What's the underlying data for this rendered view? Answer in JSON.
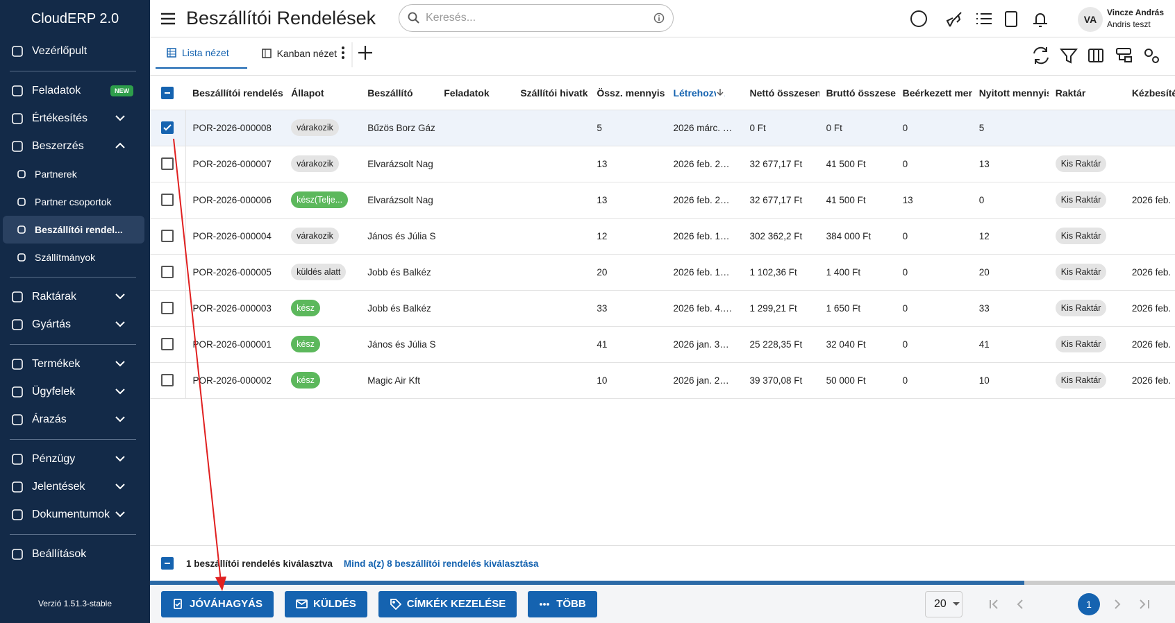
{
  "sidebar": {
    "brand": "CloudERP 2.0",
    "groups": [
      [
        {
          "label": "Vezérlőpult"
        }
      ],
      [
        {
          "label": "Feladatok",
          "badge": "NEW"
        },
        {
          "label": "Értékesítés",
          "expandable": true
        },
        {
          "label": "Beszerzés",
          "expandable": true,
          "expanded": true,
          "children": [
            {
              "label": "Partnerek"
            },
            {
              "label": "Partner csoportok"
            },
            {
              "label": "Beszállítói rendel...",
              "active": true
            },
            {
              "label": "Szállítmányok"
            }
          ]
        }
      ],
      [
        {
          "label": "Raktárak",
          "expandable": true
        },
        {
          "label": "Gyártás",
          "expandable": true
        }
      ],
      [
        {
          "label": "Termékek",
          "expandable": true
        },
        {
          "label": "Ügyfelek",
          "expandable": true
        },
        {
          "label": "Árazás",
          "expandable": true
        }
      ],
      [
        {
          "label": "Pénzügy",
          "expandable": true
        },
        {
          "label": "Jelentések",
          "expandable": true
        },
        {
          "label": "Dokumentumok",
          "expandable": true
        }
      ],
      [
        {
          "label": "Beállítások"
        }
      ]
    ],
    "version": "Verzió 1.51.3-stable"
  },
  "header": {
    "title": "Beszállítói Rendelések",
    "search_placeholder": "Keresés...",
    "avatar": "VA",
    "user_name": "Vincze András",
    "user_sub": "Andris teszt"
  },
  "tabs": [
    "Lista nézet",
    "Kanban nézet"
  ],
  "table": {
    "columns": [
      "Beszállítói rendelés",
      "Állapot",
      "Beszállító",
      "Feladatok",
      "Szállítói hivatk",
      "Össz. mennyis",
      "Létrehozva",
      "Nettó összesen",
      "Bruttó összese",
      "Beérkezett mennyiség",
      "Nyitott mennyiség",
      "Raktár",
      "Kézbesítés"
    ],
    "sorted_column": 6,
    "rows": [
      {
        "checked": true,
        "cells": [
          "POR-2026-000008",
          "várakozik",
          "Bűzös Borz Gáz",
          null,
          null,
          "5",
          "2026 márc. …",
          "0 Ft",
          "0 Ft",
          "0",
          "5",
          null,
          null
        ]
      },
      {
        "cells": [
          "POR-2026-000007",
          "várakozik",
          "Elvarázsolt Nag",
          null,
          null,
          "13",
          "2026 feb. 2…",
          "32 677,17 Ft",
          "41 500 Ft",
          "0",
          "13",
          "Kis Raktár",
          null
        ]
      },
      {
        "cells": [
          "POR-2026-000006",
          "kész(Telje...",
          "Elvarázsolt Nag",
          null,
          null,
          "13",
          "2026 feb. 2…",
          "32 677,17 Ft",
          "41 500 Ft",
          "13",
          "0",
          "Kis Raktár",
          "2026 feb."
        ]
      },
      {
        "cells": [
          "POR-2026-000004",
          "várakozik",
          "János és Júlia S",
          null,
          null,
          "12",
          "2026 feb. 1…",
          "302 362,2 Ft",
          "384 000 Ft",
          "0",
          "12",
          "Kis Raktár",
          null
        ]
      },
      {
        "cells": [
          "POR-2026-000005",
          "küldés alatt",
          "Jobb és Balkéz",
          null,
          null,
          "20",
          "2026 feb. 1…",
          "1 102,36 Ft",
          "1 400 Ft",
          "0",
          "20",
          "Kis Raktár",
          "2026 feb."
        ]
      },
      {
        "cells": [
          "POR-2026-000003",
          "kész",
          "Jobb és Balkéz",
          null,
          null,
          "33",
          "2026 feb. 4.…",
          "1 299,21 Ft",
          "1 650 Ft",
          "0",
          "33",
          "Kis Raktár",
          "2026 feb."
        ]
      },
      {
        "cells": [
          "POR-2026-000001",
          "kész",
          "János és Júlia S",
          null,
          null,
          "41",
          "2026 jan. 3…",
          "25 228,35 Ft",
          "32 040 Ft",
          "0",
          "41",
          "Kis Raktár",
          "2026 feb."
        ]
      },
      {
        "cells": [
          "POR-2026-000002",
          "kész",
          "Magic Air Kft",
          null,
          null,
          "10",
          "2026 jan. 2…",
          "39 370,08 Ft",
          "50 000 Ft",
          "0",
          "10",
          "Kis Raktár",
          "2026 feb."
        ]
      }
    ]
  },
  "selection": {
    "text": "1 beszállítói rendelés kiválasztva",
    "select_all": "Mind a(z) 8 beszállítói rendelés kiválasztása"
  },
  "actions": [
    "JÓVÁHAGYÁS",
    "KÜLDÉS",
    "CÍMKÉK KEZELÉSE",
    "TÖBB"
  ],
  "pagination": {
    "page_size": "20",
    "page": "1"
  }
}
